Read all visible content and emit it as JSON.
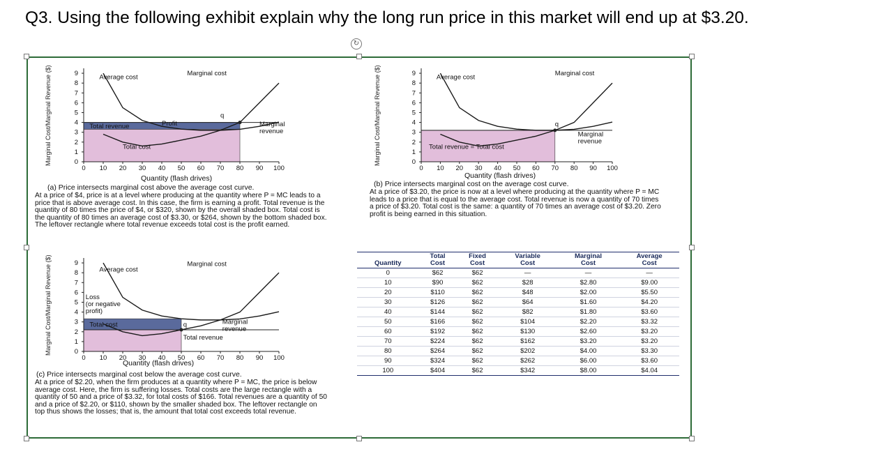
{
  "question": {
    "text": "Q3. Using the following exhibit explain why the long run price in this market will end up at $3.20."
  },
  "exhibit": {
    "axis_y_label": "Marginal Cost/Marginal Revenue ($)",
    "axis_x_label": "Quantity (flash drives)",
    "y_ticks": [
      "0",
      "1",
      "2",
      "3",
      "4",
      "5",
      "6",
      "7",
      "8",
      "9"
    ],
    "x_ticks": [
      "0",
      "10",
      "20",
      "30",
      "40",
      "50",
      "60",
      "70",
      "80",
      "90",
      "100"
    ],
    "panel_a": {
      "labels": {
        "average_cost": "Average cost",
        "marginal_cost": "Marginal cost",
        "marginal_revenue": "Marginal\nrevenue",
        "profit": "Profit",
        "total_revenue": "Total revenue",
        "total_cost": "Total cost",
        "q": "q"
      },
      "caption": "(a) Price intersects marginal cost above the average cost curve.",
      "description": "At a price of $4, price is at a level where producing at the quantity where P = MC leads to a price that is above average cost. In this case, the firm is earning a profit. Total revenue is the quantity of 80 times the price of $4, or $320, shown by the overall shaded box. Total cost is the quantity of 80 times an average cost of $3.30, or $264, shown by the bottom shaded box. The leftover rectangle where total revenue exceeds total cost is the profit earned."
    },
    "panel_b": {
      "labels": {
        "average_cost": "Average cost",
        "marginal_cost": "Marginal cost",
        "marginal_revenue": "Marginal\nrevenue",
        "total_revenue_eq": "Total revenue = Total cost",
        "q": "q"
      },
      "caption": "(b) Price intersects marginal cost on the average cost curve.",
      "description": "At a price of $3.20, the price is now at a level where producing at the quantity where P = MC leads to a price that is equal to the average cost. Total revenue is now a quantity of 70 times a price of $3.20. Total cost is the same: a quantity of 70 times an average cost of $3.20. Zero profit is being earned in this situation."
    },
    "panel_c": {
      "labels": {
        "average_cost": "Average cost",
        "marginal_cost": "Marginal cost",
        "marginal_revenue": "Marginal\nrevenue",
        "loss": "Loss\n(or negative\nprofit)",
        "total_cost": "Total cost",
        "total_revenue": "Total revenue",
        "q": "q"
      },
      "caption": "(c) Price intersects marginal cost below the average cost curve.",
      "description": "At a price of $2.20, when the firm produces at a quantity where P = MC, the price is below average cost. Here, the firm is suffering losses. Total costs are the large rectangle with a quantity of 50 and a price of $3.32, for total costs of $166. Total revenues are a quantity of 50 and a price of $2.20, or $110, shown by the smaller shaded box. The leftover rectangle on top thus shows the losses; that is, the amount that total cost exceeds total revenue."
    },
    "table": {
      "headers": [
        "Quantity",
        "Total Cost",
        "Fixed Cost",
        "Variable Cost",
        "Marginal Cost",
        "Average Cost"
      ],
      "rows": [
        [
          "0",
          "$62",
          "$62",
          "—",
          "—",
          "—"
        ],
        [
          "10",
          "$90",
          "$62",
          "$28",
          "$2.80",
          "$9.00"
        ],
        [
          "20",
          "$110",
          "$62",
          "$48",
          "$2.00",
          "$5.50"
        ],
        [
          "30",
          "$126",
          "$62",
          "$64",
          "$1.60",
          "$4.20"
        ],
        [
          "40",
          "$144",
          "$62",
          "$82",
          "$1.80",
          "$3.60"
        ],
        [
          "50",
          "$166",
          "$62",
          "$104",
          "$2.20",
          "$3.32"
        ],
        [
          "60",
          "$192",
          "$62",
          "$130",
          "$2.60",
          "$3.20"
        ],
        [
          "70",
          "$224",
          "$62",
          "$162",
          "$3.20",
          "$3.20"
        ],
        [
          "80",
          "$264",
          "$62",
          "$202",
          "$4.00",
          "$3.30"
        ],
        [
          "90",
          "$324",
          "$62",
          "$262",
          "$6.00",
          "$3.60"
        ],
        [
          "100",
          "$404",
          "$62",
          "$342",
          "$8.00",
          "$4.04"
        ]
      ]
    }
  },
  "colors": {
    "frame_border": "#2d6b37",
    "profit_fill": "#5a6a9c",
    "cost_fill": "#e2bedb",
    "curve": "#1a1a1a",
    "table_header": "#1a2a5a"
  },
  "icons": {
    "rotate": "rotate-icon"
  }
}
